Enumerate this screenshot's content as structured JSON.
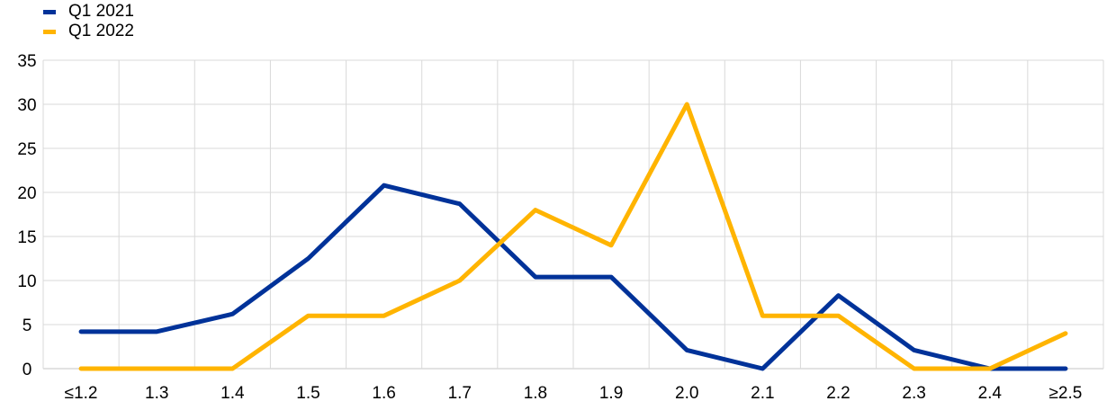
{
  "chart_data": {
    "type": "line",
    "title": "",
    "xlabel": "",
    "ylabel": "",
    "categories": [
      "≤1.2",
      "1.3",
      "1.4",
      "1.5",
      "1.6",
      "1.7",
      "1.8",
      "1.9",
      "2.0",
      "2.1",
      "2.2",
      "2.3",
      "2.4",
      "≥2.5"
    ],
    "ylim": [
      0,
      35
    ],
    "yticks": [
      0,
      5,
      10,
      15,
      20,
      25,
      30,
      35
    ],
    "grid": true,
    "legend_position": "top-left",
    "series": [
      {
        "name": "Q1 2021",
        "color": "#003299",
        "values": [
          4.2,
          4.2,
          6.2,
          12.5,
          20.8,
          18.7,
          10.4,
          10.4,
          2.1,
          0,
          8.3,
          2.1,
          0,
          0
        ]
      },
      {
        "name": "Q1 2022",
        "color": "#FFB400",
        "values": [
          0,
          0,
          0,
          6,
          6,
          10,
          18,
          14,
          30,
          6,
          6,
          0,
          0,
          4
        ]
      }
    ]
  }
}
